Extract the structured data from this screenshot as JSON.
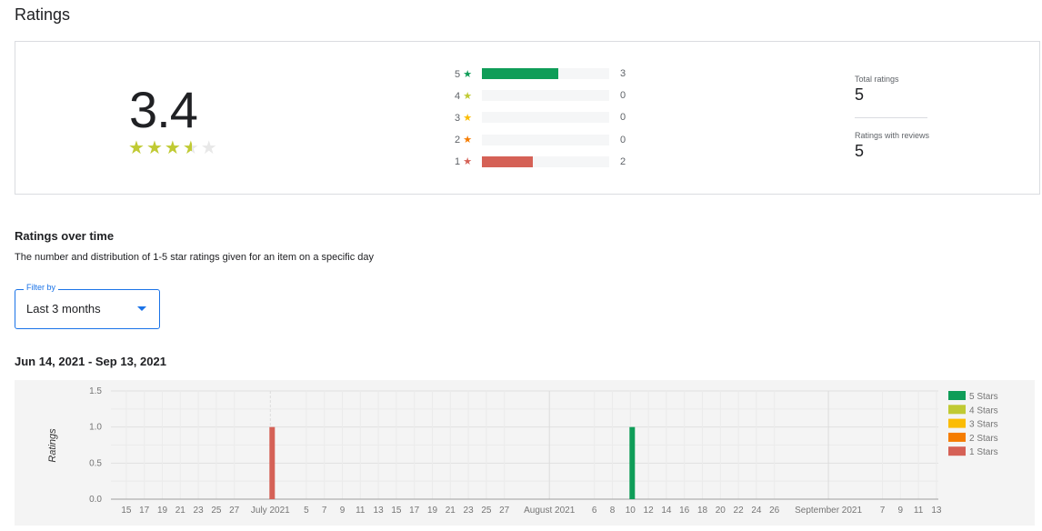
{
  "page": {
    "title": "Ratings"
  },
  "summary": {
    "average": "3.4",
    "average_value": 3.4,
    "distribution": [
      {
        "label": "5",
        "count": 3,
        "color": "#0f9d58"
      },
      {
        "label": "4",
        "count": 0,
        "color": "#c0ca33"
      },
      {
        "label": "3",
        "count": 0,
        "color": "#fbbc04"
      },
      {
        "label": "2",
        "count": 0,
        "color": "#f57c00"
      },
      {
        "label": "1",
        "count": 2,
        "color": "#d56156"
      }
    ],
    "total_ratings_label": "Total ratings",
    "total_ratings": "5",
    "with_reviews_label": "Ratings with reviews",
    "with_reviews": "5"
  },
  "over_time": {
    "title": "Ratings over time",
    "description": "The number and distribution of 1-5 star ratings given for an item on a specific day",
    "filter_label": "Filter by",
    "filter_value": "Last 3 months",
    "range": "Jun 14, 2021 - Sep 13, 2021"
  },
  "chart_data": {
    "type": "bar",
    "stacked": true,
    "ylabel": "Ratings",
    "ylim": [
      0,
      1.5
    ],
    "yticks": [
      "0.0",
      "0.5",
      "1.0",
      "1.5"
    ],
    "x_range": [
      "2021-06-14",
      "2021-09-13"
    ],
    "xtick_labels": [
      {
        "date": "2021-06-15",
        "label": "15"
      },
      {
        "date": "2021-06-17",
        "label": "17"
      },
      {
        "date": "2021-06-19",
        "label": "19"
      },
      {
        "date": "2021-06-21",
        "label": "21"
      },
      {
        "date": "2021-06-23",
        "label": "23"
      },
      {
        "date": "2021-06-25",
        "label": "25"
      },
      {
        "date": "2021-06-27",
        "label": "27"
      },
      {
        "date": "2021-07-01",
        "label": "July 2021"
      },
      {
        "date": "2021-07-05",
        "label": "5"
      },
      {
        "date": "2021-07-07",
        "label": "7"
      },
      {
        "date": "2021-07-09",
        "label": "9"
      },
      {
        "date": "2021-07-11",
        "label": "11"
      },
      {
        "date": "2021-07-13",
        "label": "13"
      },
      {
        "date": "2021-07-15",
        "label": "15"
      },
      {
        "date": "2021-07-17",
        "label": "17"
      },
      {
        "date": "2021-07-19",
        "label": "19"
      },
      {
        "date": "2021-07-21",
        "label": "21"
      },
      {
        "date": "2021-07-23",
        "label": "23"
      },
      {
        "date": "2021-07-25",
        "label": "25"
      },
      {
        "date": "2021-07-27",
        "label": "27"
      },
      {
        "date": "2021-08-01",
        "label": "August 2021"
      },
      {
        "date": "2021-08-06",
        "label": "6"
      },
      {
        "date": "2021-08-08",
        "label": "8"
      },
      {
        "date": "2021-08-10",
        "label": "10"
      },
      {
        "date": "2021-08-12",
        "label": "12"
      },
      {
        "date": "2021-08-14",
        "label": "14"
      },
      {
        "date": "2021-08-16",
        "label": "16"
      },
      {
        "date": "2021-08-18",
        "label": "18"
      },
      {
        "date": "2021-08-20",
        "label": "20"
      },
      {
        "date": "2021-08-22",
        "label": "22"
      },
      {
        "date": "2021-08-24",
        "label": "24"
      },
      {
        "date": "2021-08-26",
        "label": "26"
      },
      {
        "date": "2021-09-01",
        "label": "September 2021"
      },
      {
        "date": "2021-09-07",
        "label": "7"
      },
      {
        "date": "2021-09-09",
        "label": "9"
      },
      {
        "date": "2021-09-11",
        "label": "11"
      },
      {
        "date": "2021-09-13",
        "label": "13"
      }
    ],
    "series": [
      {
        "name": "5 Stars",
        "color": "#0f9d58",
        "points": [
          {
            "date": "2021-08-10",
            "value": 1
          }
        ]
      },
      {
        "name": "4 Stars",
        "color": "#c0ca33",
        "points": []
      },
      {
        "name": "3 Stars",
        "color": "#fbbc04",
        "points": []
      },
      {
        "name": "2 Stars",
        "color": "#f57c00",
        "points": []
      },
      {
        "name": "1 Stars",
        "color": "#d56156",
        "points": [
          {
            "date": "2021-07-01",
            "value": 1
          }
        ]
      }
    ],
    "grid": true,
    "legend_position": "right"
  }
}
